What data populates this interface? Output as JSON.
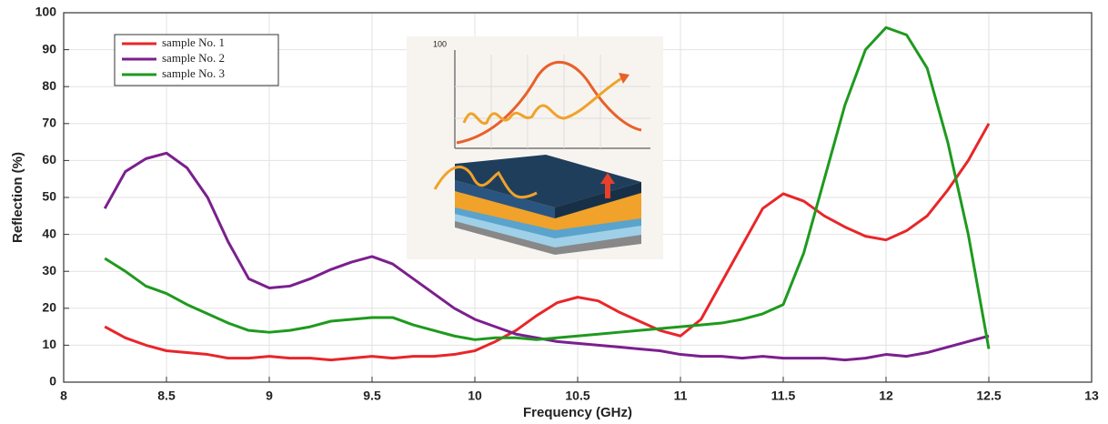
{
  "chart_data": {
    "type": "line",
    "xlabel": "Frequency (GHz)",
    "ylabel": "Reflection (%)",
    "inset_label": "100",
    "x": [
      8.2,
      8.3,
      8.4,
      8.5,
      8.6,
      8.7,
      8.8,
      8.9,
      9.0,
      9.1,
      9.2,
      9.3,
      9.4,
      9.5,
      9.6,
      9.7,
      9.8,
      9.9,
      10.0,
      10.1,
      10.2,
      10.3,
      10.4,
      10.5,
      10.6,
      10.7,
      10.8,
      10.9,
      11.0,
      11.1,
      11.2,
      11.3,
      11.4,
      11.5,
      11.6,
      11.7,
      11.8,
      11.9,
      12.0,
      12.1,
      12.2,
      12.3,
      12.4,
      12.5
    ],
    "series": [
      {
        "name": "sample No. 1",
        "color": "#e8262a",
        "values": [
          15,
          12,
          10,
          8.5,
          8,
          7.5,
          6.5,
          6.5,
          7,
          6.5,
          6.5,
          6,
          6.5,
          7,
          6.5,
          7,
          7,
          7.5,
          8.5,
          11,
          14,
          18,
          21.5,
          23,
          22,
          19,
          16.5,
          14,
          12.5,
          17,
          27,
          37,
          47,
          51,
          49,
          45,
          42,
          39.5,
          38.5,
          41,
          45,
          52,
          60,
          70
        ]
      },
      {
        "name": "sample No. 2",
        "color": "#7b1f8e",
        "values": [
          47,
          57,
          60.5,
          62,
          58,
          50,
          38,
          28,
          25.5,
          26,
          28,
          30.5,
          32.5,
          34,
          32,
          28,
          24,
          20,
          17,
          15,
          13,
          12,
          11,
          10.5,
          10,
          9.5,
          9,
          8.5,
          7.5,
          7,
          7,
          6.5,
          7,
          6.5,
          6.5,
          6.5,
          6,
          6.5,
          7.5,
          7,
          8,
          9.5,
          11,
          12.5
        ]
      },
      {
        "name": "sample No. 3",
        "color": "#1e9a1e",
        "values": [
          33.5,
          30,
          26,
          24,
          21,
          18.5,
          16,
          14,
          13.5,
          14,
          15,
          16.5,
          17,
          17.5,
          17.5,
          15.5,
          14,
          12.5,
          11.5,
          12,
          12,
          11.5,
          12,
          12.5,
          13,
          13.5,
          14,
          14.5,
          15,
          15.5,
          16,
          17,
          18.5,
          21,
          35,
          55,
          75,
          90,
          96,
          94,
          85,
          65,
          40,
          9
        ]
      }
    ],
    "xlim": [
      8,
      13
    ],
    "ylim": [
      0,
      100
    ],
    "xticks": [
      8,
      8.5,
      9,
      9.5,
      10,
      10.5,
      11,
      11.5,
      12,
      12.5,
      13
    ],
    "yticks": [
      0,
      10,
      20,
      30,
      40,
      50,
      60,
      70,
      80,
      90,
      100
    ],
    "grid": true,
    "legend": "upper-left"
  }
}
